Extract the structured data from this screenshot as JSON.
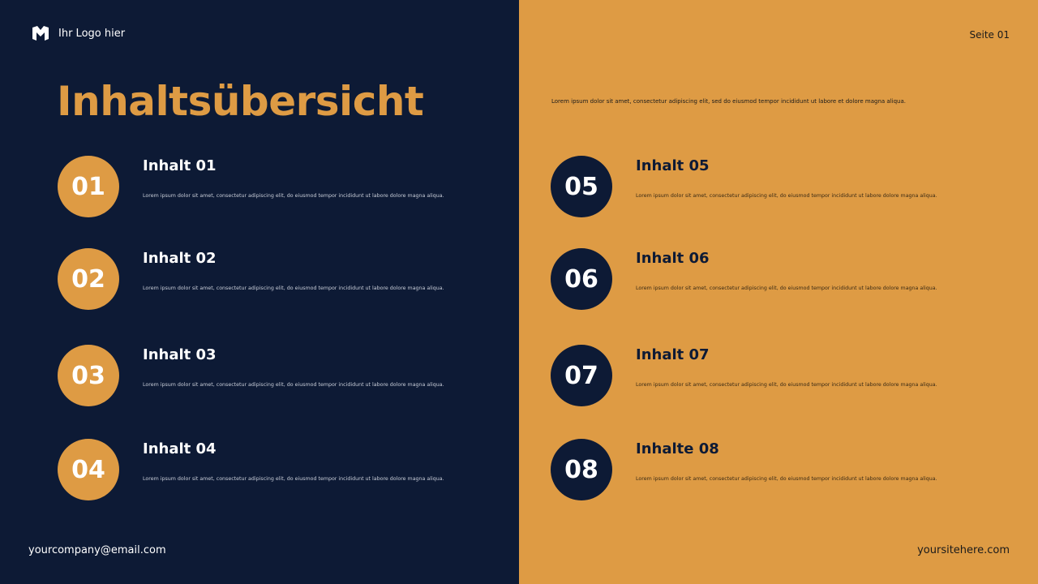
{
  "header": {
    "logo_text": "Ihr Logo hier",
    "page_label": "Seite 01"
  },
  "title": "Inhaltsübersicht",
  "intro": "Lorem ipsum dolor sit amet, consectetur adipiscing elit, sed do eiusmod tempor incididunt ut labore et dolore magna aliqua.",
  "items": [
    {
      "num": "01",
      "title": "Inhalt 01",
      "desc": "Lorem ipsum dolor sit amet, consectetur adipiscing elit, do eiusmod tempor incididunt ut labore dolore magna aliqua."
    },
    {
      "num": "02",
      "title": "Inhalt 02",
      "desc": "Lorem ipsum dolor sit amet, consectetur adipiscing elit, do eiusmod tempor incididunt ut labore dolore magna aliqua."
    },
    {
      "num": "03",
      "title": "Inhalt 03",
      "desc": "Lorem ipsum dolor sit amet, consectetur adipiscing elit, do eiusmod tempor incididunt ut labore dolore magna aliqua."
    },
    {
      "num": "04",
      "title": "Inhalt 04",
      "desc": "Lorem ipsum dolor sit amet, consectetur adipiscing elit, do eiusmod tempor incididunt ut labore dolore magna aliqua."
    },
    {
      "num": "05",
      "title": "Inhalt 05",
      "desc": "Lorem ipsum dolor sit amet, consectetur adipiscing elit, do eiusmod tempor incididunt ut labore dolore magna aliqua."
    },
    {
      "num": "06",
      "title": "Inhalt 06",
      "desc": "Lorem ipsum dolor sit amet, consectetur adipiscing elit, do eiusmod tempor incididunt ut labore dolore magna aliqua."
    },
    {
      "num": "07",
      "title": "Inhalt 07",
      "desc": "Lorem ipsum dolor sit amet, consectetur adipiscing elit, do eiusmod tempor incididunt ut labore dolore magna aliqua."
    },
    {
      "num": "08",
      "title": "Inhalte 08",
      "desc": "Lorem ipsum dolor sit amet, consectetur adipiscing elit, do eiusmod tempor incididunt ut labore dolore magna aliqua."
    }
  ],
  "footer": {
    "email": "yourcompany@email.com",
    "website": "yoursitehere.com"
  },
  "colors": {
    "navy": "#0d1a35",
    "orange": "#de9b44"
  }
}
